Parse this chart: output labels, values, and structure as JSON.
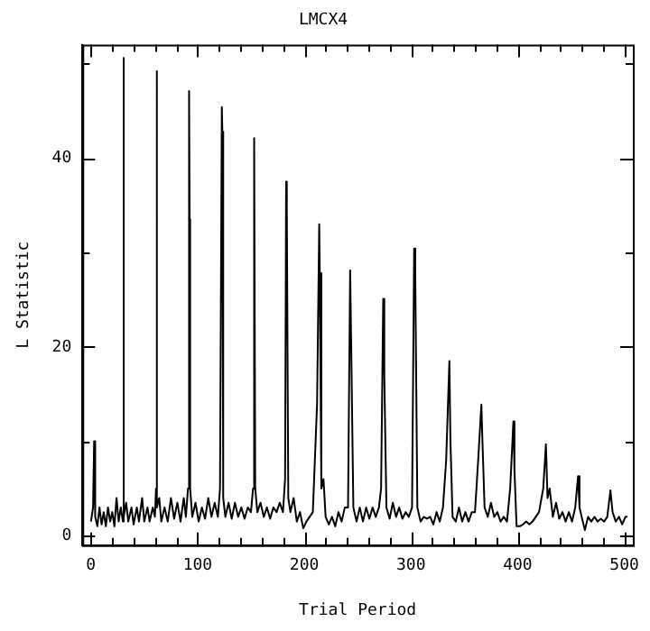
{
  "chart_data": {
    "type": "line",
    "title": "LMCX4",
    "xlabel": "Trial Period",
    "ylabel": "L Statistic",
    "xlim": [
      -8,
      508
    ],
    "ylim": [
      -1,
      52
    ],
    "xticks": [
      0,
      {
        "value": 20,
        "label": null
      },
      {
        "value": 40,
        "label": null
      },
      {
        "value": 60,
        "label": null
      },
      {
        "value": 80,
        "label": null
      },
      100,
      {
        "value": 120,
        "label": null
      },
      {
        "value": 140,
        "label": null
      },
      {
        "value": 160,
        "label": null
      },
      {
        "value": 180,
        "label": null
      },
      200,
      {
        "value": 220,
        "label": null
      },
      {
        "value": 240,
        "label": null
      },
      {
        "value": 260,
        "label": null
      },
      {
        "value": 280,
        "label": null
      },
      300,
      {
        "value": 320,
        "label": null
      },
      {
        "value": 340,
        "label": null
      },
      {
        "value": 360,
        "label": null
      },
      {
        "value": 380,
        "label": null
      },
      400,
      {
        "value": 420,
        "label": null
      },
      {
        "value": 440,
        "label": null
      },
      {
        "value": 460,
        "label": null
      },
      {
        "value": 480,
        "label": null
      },
      500
    ],
    "yticks": [
      0,
      {
        "value": 10,
        "label": null
      },
      20,
      {
        "value": 30,
        "label": null
      },
      40,
      {
        "value": 50,
        "label": null
      }
    ],
    "grid": false,
    "legend": false,
    "marker": "none",
    "line_style": "solid",
    "series": [
      {
        "color": "#000000",
        "x": [
          0,
          2,
          3,
          4,
          6,
          8,
          10,
          12,
          14,
          16,
          18,
          20,
          22,
          24,
          26,
          28,
          30,
          30.5,
          31,
          33,
          35,
          38,
          40,
          43,
          45,
          48,
          50,
          53,
          55,
          58,
          60,
          61,
          61.6,
          62,
          64,
          66,
          69,
          72,
          75,
          78,
          81,
          84,
          87,
          89,
          91,
          92,
          92.5,
          93,
          95,
          98,
          101,
          104,
          107,
          110,
          113,
          116,
          119,
          121,
          122.7,
          123.2,
          124,
          126,
          129,
          132,
          135,
          138,
          141,
          144,
          147,
          150,
          152,
          153,
          154,
          156,
          159,
          162,
          165,
          168,
          171,
          174,
          177,
          180,
          182,
          183,
          183.6,
          185,
          187,
          190,
          193,
          196,
          199,
          202,
          205,
          208,
          212,
          214,
          214.5,
          216,
          218,
          220,
          223,
          226,
          229,
          232,
          235,
          238,
          241,
          243,
          244,
          246,
          249,
          252,
          255,
          258,
          261,
          264,
          267,
          270,
          272,
          274,
          275,
          277,
          280,
          283,
          286,
          289,
          292,
          295,
          298,
          301,
          303,
          304,
          306,
          309,
          312,
          315,
          318,
          321,
          324,
          327,
          330,
          333,
          336,
          337,
          339,
          342,
          345,
          348,
          351,
          354,
          357,
          360,
          363,
          366,
          367,
          369,
          372,
          375,
          378,
          381,
          384,
          387,
          390,
          393,
          396,
          397,
          399,
          402,
          405,
          408,
          411,
          414,
          417,
          420,
          424,
          426.5,
          428,
          430,
          433,
          436,
          439,
          442,
          445,
          448,
          451,
          454,
          456.6,
          458,
          460,
          463,
          466,
          469,
          472,
          475,
          478,
          481,
          484,
          487,
          489,
          492,
          495,
          498,
          501,
          503
        ],
        "values": [
          1.5,
          3,
          10,
          2,
          1,
          3,
          1.2,
          2.5,
          1,
          3,
          1.5,
          2.5,
          1,
          4,
          1.5,
          3,
          1.5,
          50.6,
          2,
          3.5,
          1.5,
          3,
          1.2,
          3,
          1.5,
          4,
          1.5,
          3,
          1.5,
          3,
          2,
          5,
          49.2,
          3,
          4,
          1.5,
          3,
          1.5,
          4,
          1.8,
          3.5,
          1.5,
          4,
          2,
          5,
          47.1,
          33.5,
          5,
          2,
          3.5,
          1.5,
          3,
          1.8,
          4,
          2,
          3.5,
          2,
          5,
          45.4,
          42.8,
          4,
          2,
          3.5,
          1.8,
          3.5,
          2,
          3,
          1.8,
          3,
          2.5,
          5,
          42.1,
          5,
          2.5,
          3.5,
          2,
          3,
          1.8,
          3,
          2.5,
          3.5,
          2.5,
          6,
          37.5,
          34.9,
          4,
          2.5,
          4,
          1.5,
          2.5,
          0.8,
          1.5,
          2,
          2.5,
          14,
          33,
          27.8,
          5,
          6,
          2,
          1.2,
          2,
          1,
          2.5,
          1.5,
          3,
          3,
          28.1,
          20,
          3,
          1.5,
          3,
          1.5,
          3,
          1.8,
          3,
          2,
          3,
          5,
          25.1,
          17,
          3,
          1.8,
          3.5,
          2,
          3,
          1.8,
          2.5,
          2,
          3,
          30.4,
          28,
          3,
          1.5,
          2,
          1.8,
          2,
          1.2,
          2.5,
          1.5,
          3,
          8,
          18.5,
          10,
          2,
          1.5,
          3,
          1.5,
          2.5,
          1.5,
          2.5,
          2.5,
          8,
          13.9,
          10,
          3,
          2,
          3.5,
          2,
          2.5,
          1.5,
          2,
          1.5,
          5,
          12.1,
          7,
          1,
          1,
          1.2,
          1.5,
          1.2,
          1.5,
          2,
          2.5,
          5,
          9.7,
          4,
          5,
          2,
          3.5,
          1.8,
          2.5,
          1.5,
          2.5,
          1.5,
          3,
          6.3,
          3,
          2,
          0.6,
          2,
          1.5,
          2,
          1.5,
          1.8,
          1.5,
          2,
          4.8,
          2.5,
          1.5,
          2,
          1.2,
          2,
          2
        ]
      }
    ]
  }
}
